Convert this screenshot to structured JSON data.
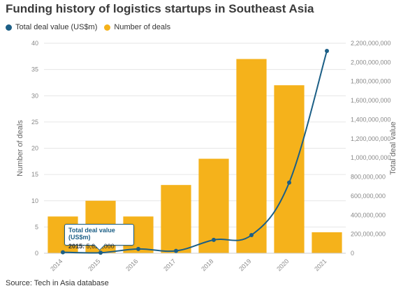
{
  "title": "Funding history of logistics startups in Southeast Asia",
  "source": "Source: Tech in Asia database",
  "legend": {
    "line_label": "Total deal value (US$m)",
    "bar_label": "Number of deals"
  },
  "colors": {
    "bar": "#f5b21b",
    "line": "#1c5f86",
    "grid": "#e6e6e6",
    "axis_text": "#888888"
  },
  "tooltip": {
    "title": "Total deal value (US$m)",
    "year": "2015:",
    "value": "5,621,000"
  },
  "chart_data": {
    "type": "bar",
    "title": "Funding history of logistics startups in Southeast Asia",
    "categories": [
      "2014",
      "2015",
      "2016",
      "2017",
      "2018",
      "2019",
      "2020",
      "2021"
    ],
    "ylabel": "Number of deals",
    "y2label": "Total deal value",
    "ylim": [
      0,
      40
    ],
    "y2lim": [
      0,
      2200000000
    ],
    "yticks": [
      "0",
      "5",
      "10",
      "15",
      "20",
      "25",
      "30",
      "35",
      "40"
    ],
    "y2ticks": [
      "0",
      "200,000,000",
      "400,000,000",
      "600,000,000",
      "800,000,000",
      "1,000,000,000",
      "1,200,000,000",
      "1,400,000,000",
      "1,600,000,000",
      "1,800,000,000",
      "2,000,000,000",
      "2,200,000,000"
    ],
    "grid": true,
    "series": [
      {
        "name": "Number of deals",
        "type": "bar",
        "axis": "left",
        "values": [
          7,
          10,
          7,
          13,
          18,
          37,
          32,
          4
        ]
      },
      {
        "name": "Total deal value (US$m)",
        "type": "line",
        "axis": "right",
        "values": [
          10000000,
          5621000,
          45000000,
          25000000,
          140000000,
          190000000,
          740000000,
          2120000000
        ]
      }
    ]
  }
}
